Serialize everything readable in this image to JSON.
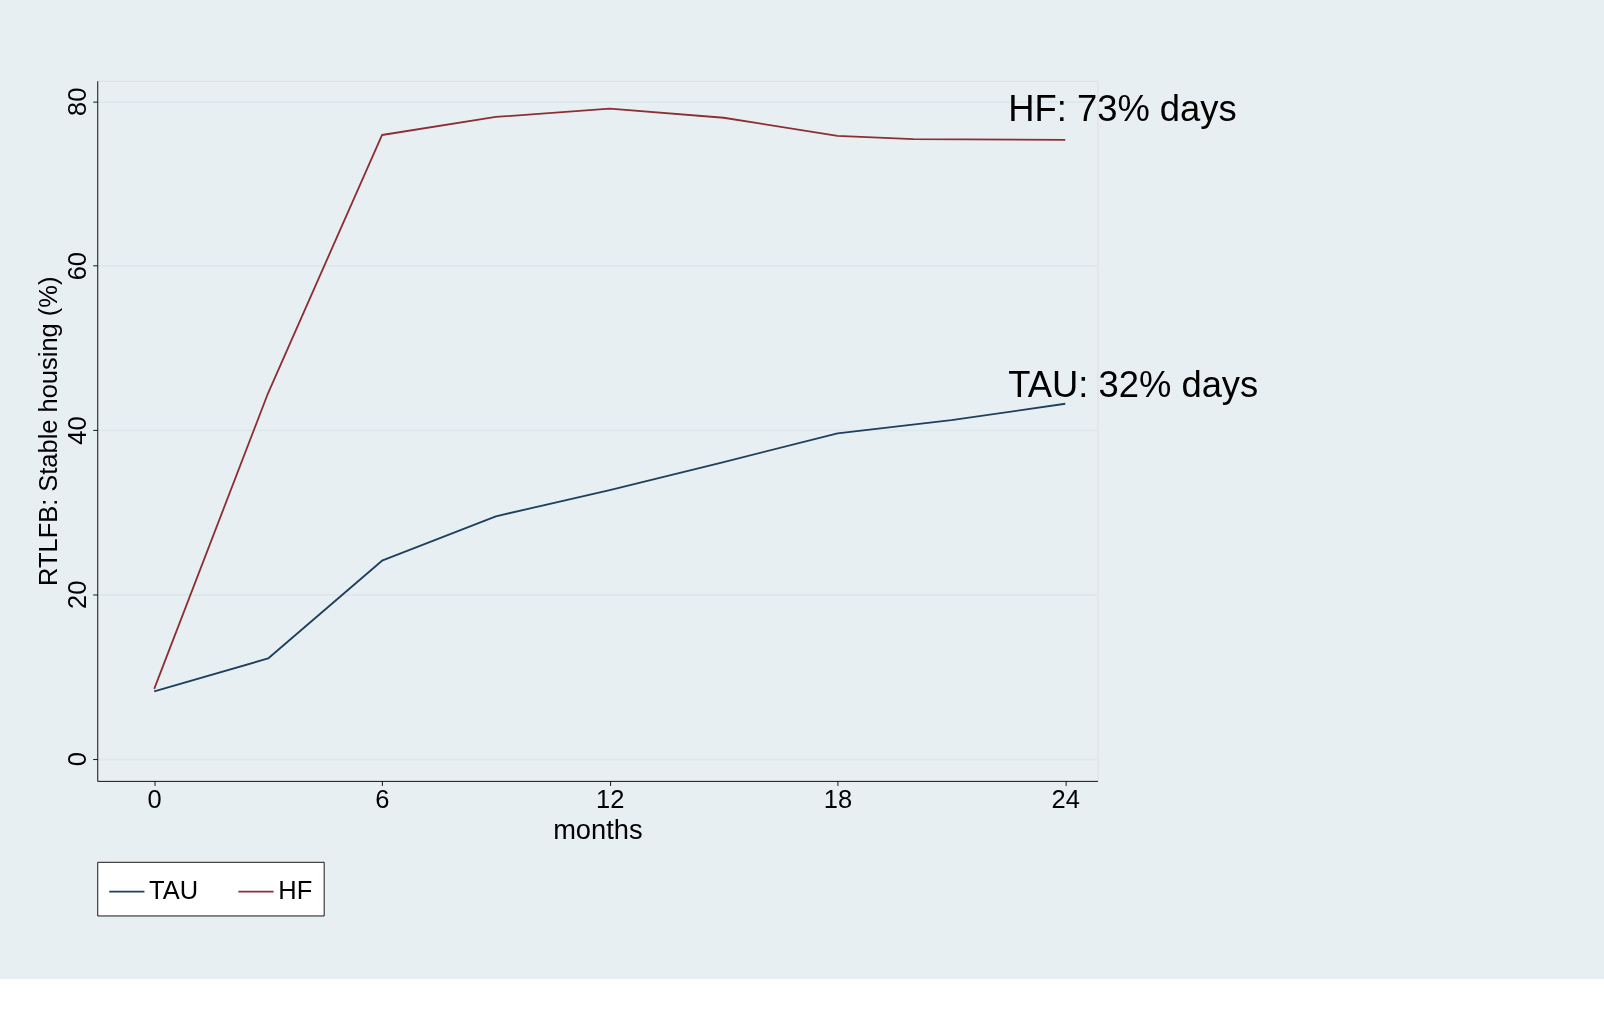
{
  "chart_data": {
    "type": "line",
    "xlabel": "months",
    "ylabel": "RTLFB: Stable housing (%)",
    "xlim": [
      -1.5,
      24.85
    ],
    "ylim": [
      -2.7,
      82.5
    ],
    "xticks": [
      0,
      6,
      12,
      18,
      24
    ],
    "yticks": [
      0,
      20,
      40,
      60,
      80
    ],
    "grid": "y",
    "legend": "bottom",
    "marker": "none",
    "line_style": "solid",
    "series": [
      {
        "name": "TAU",
        "color": "#1f3f5f",
        "x": [
          0,
          3,
          6,
          9,
          12,
          15,
          18,
          21,
          24
        ],
        "values": [
          8.2,
          12.2,
          24.1,
          29.5,
          32.7,
          36.1,
          39.6,
          41.2,
          43.2
        ]
      },
      {
        "name": "HF",
        "color": "#8b2f35",
        "x": [
          0,
          3,
          6,
          9,
          12,
          15,
          18,
          20,
          24
        ],
        "values": [
          8.5,
          44.5,
          75.9,
          78.1,
          79.1,
          78.0,
          75.8,
          75.4,
          75.3
        ]
      }
    ],
    "annotations": [
      {
        "text": "HF:  73% days",
        "x": 22.5,
        "y": 76
      },
      {
        "text": "TAU: 32% days",
        "x": 22.5,
        "y": 42.5
      }
    ]
  }
}
